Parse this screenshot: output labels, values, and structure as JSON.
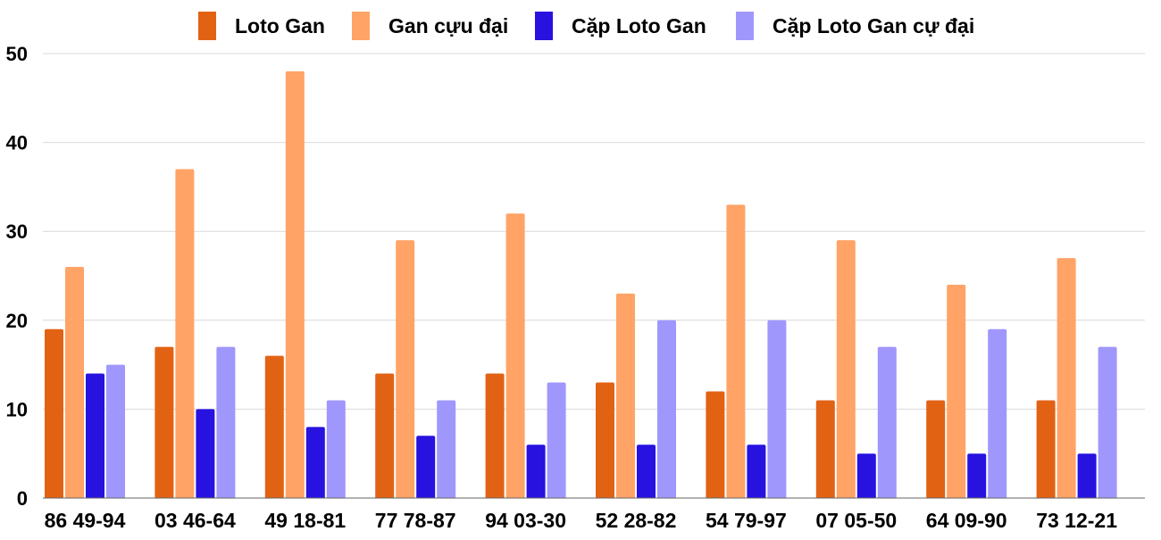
{
  "chart_data": {
    "type": "bar",
    "title": "",
    "xlabel": "",
    "ylabel": "",
    "ylim": [
      0,
      50
    ],
    "yticks": [
      0,
      10,
      20,
      30,
      40,
      50
    ],
    "grid": true,
    "legend_position": "top",
    "categories": [
      "86 49-94",
      "03 46-64",
      "49 18-81",
      "77 78-87",
      "94 03-30",
      "52 28-82",
      "54 79-97",
      "07 05-50",
      "64 09-90",
      "73 12-21"
    ],
    "series": [
      {
        "name": "Loto Gan",
        "color": "#e26214",
        "values": [
          19,
          17,
          16,
          14,
          14,
          13,
          12,
          11,
          11,
          11
        ]
      },
      {
        "name": "Gan cựu đại",
        "color": "#ffa366",
        "values": [
          26,
          37,
          48,
          29,
          32,
          23,
          33,
          29,
          24,
          27
        ]
      },
      {
        "name": "Cặp Loto Gan",
        "color": "#2712e0",
        "values": [
          14,
          10,
          8,
          7,
          6,
          6,
          6,
          5,
          5,
          5
        ]
      },
      {
        "name": "Cặp Loto Gan cự đại",
        "color": "#a097fd",
        "values": [
          15,
          17,
          11,
          11,
          13,
          20,
          20,
          17,
          19,
          17
        ]
      }
    ]
  }
}
